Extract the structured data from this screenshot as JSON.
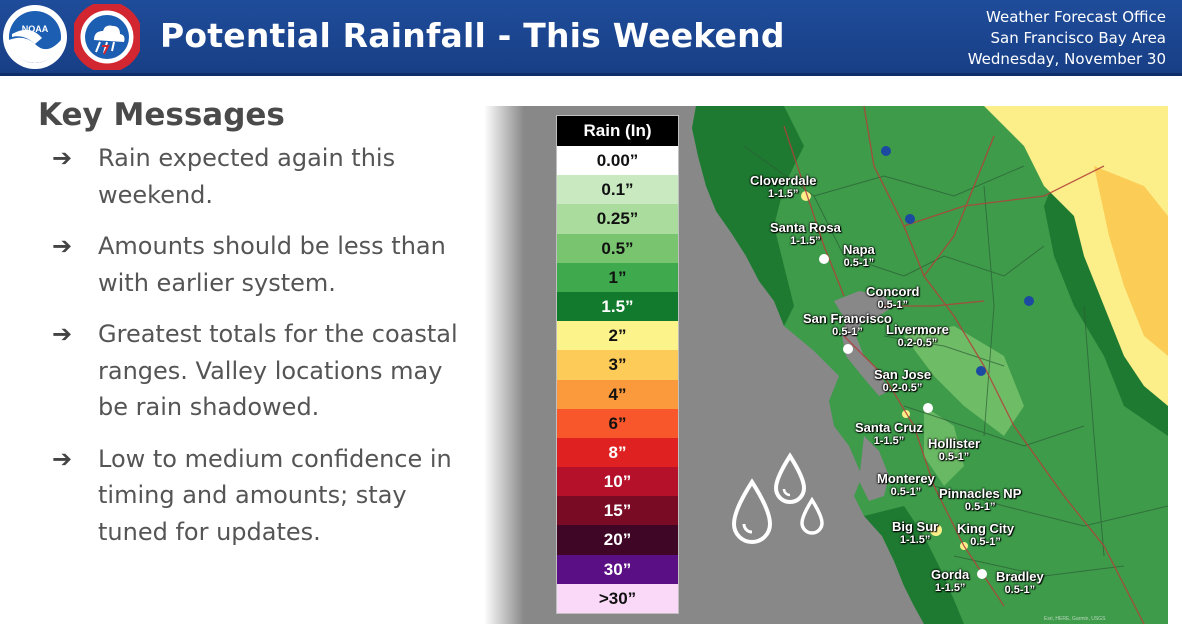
{
  "header": {
    "title": "Potential Rainfall - This Weekend",
    "office_lines": [
      "Weather Forecast Office",
      "San Francisco Bay Area",
      "Wednesday, November 30"
    ],
    "logos": [
      "noaa-logo",
      "nws-logo"
    ]
  },
  "key_messages": {
    "title": "Key Messages",
    "items": [
      "Rain expected again this weekend.",
      "Amounts should be less than with earlier system.",
      "Greatest totals for the coastal ranges. Valley locations may be rain shadowed.",
      "Low to medium confidence in timing and amounts; stay tuned for updates."
    ]
  },
  "legend": {
    "title": "Rain (In)",
    "items": [
      {
        "label": "0.00”",
        "color": "#ffffff"
      },
      {
        "label": "0.1”",
        "color": "#c9e9c1"
      },
      {
        "label": "0.25”",
        "color": "#a9dc9d"
      },
      {
        "label": "0.5”",
        "color": "#79c46f"
      },
      {
        "label": "1”",
        "color": "#3fa94e"
      },
      {
        "label": "1.5”",
        "color": "#127a2c"
      },
      {
        "label": "2”",
        "color": "#fdf38b"
      },
      {
        "label": "3”",
        "color": "#fccb58"
      },
      {
        "label": "4”",
        "color": "#fb9a3c"
      },
      {
        "label": "6”",
        "color": "#f7572b"
      },
      {
        "label": "8”",
        "color": "#df2121"
      },
      {
        "label": "10”",
        "color": "#b5112b"
      },
      {
        "label": "15”",
        "color": "#7a0b25"
      },
      {
        "label": "20”",
        "color": "#3f0626"
      },
      {
        "label": "30”",
        "color": "#5a0f85"
      },
      {
        "label": ">30”",
        "color": "#fad9f8"
      }
    ]
  },
  "map": {
    "colors": {
      "ocean": "#888889",
      "land_green": "#3d9b4a",
      "land_dark": "#1e7a31",
      "land_light": "#7cc46e",
      "yellow": "#fcef8a",
      "orange": "#fbcd57",
      "roads": "#b3413a"
    },
    "cities": [
      {
        "name": "Cloverdale",
        "amount": "1-1.5”"
      },
      {
        "name": "Santa Rosa",
        "amount": "1-1.5”"
      },
      {
        "name": "Napa",
        "amount": "0.5-1”"
      },
      {
        "name": "Concord",
        "amount": "0.5-1”"
      },
      {
        "name": "San Francisco",
        "amount": "0.5-1”"
      },
      {
        "name": "Livermore",
        "amount": "0.2-0.5”"
      },
      {
        "name": "San Jose",
        "amount": "0.2-0.5”"
      },
      {
        "name": "Santa Cruz",
        "amount": "1-1.5”"
      },
      {
        "name": "Hollister",
        "amount": "0.5-1”"
      },
      {
        "name": "Monterey",
        "amount": "0.5-1”"
      },
      {
        "name": "Pinnacles NP",
        "amount": "0.5-1”"
      },
      {
        "name": "Big Sur",
        "amount": "1-1.5”"
      },
      {
        "name": "King City",
        "amount": "0.5-1”"
      },
      {
        "name": "Gorda",
        "amount": "1-1.5”"
      },
      {
        "name": "Bradley",
        "amount": "0.5-1”"
      }
    ]
  }
}
